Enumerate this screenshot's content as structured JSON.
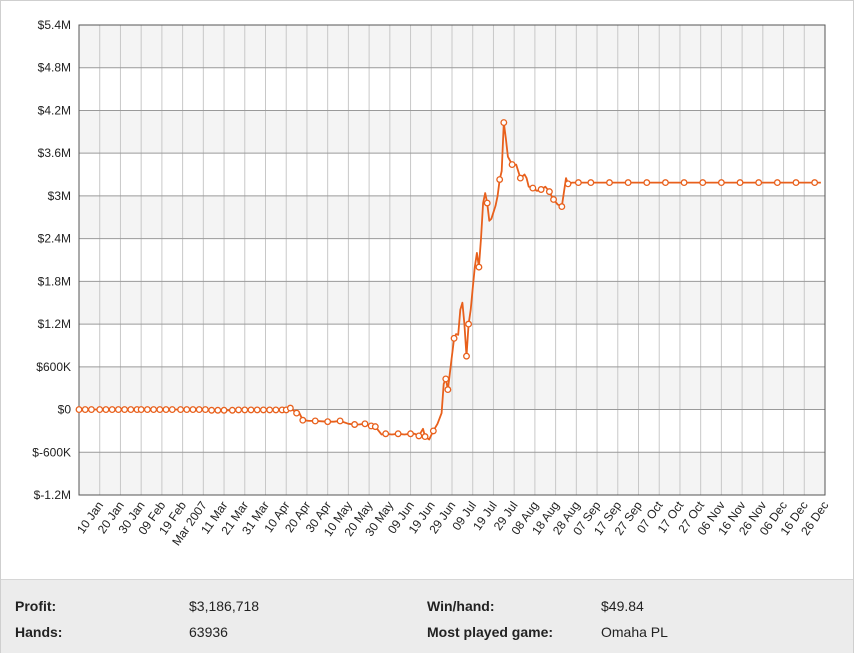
{
  "chart_data": {
    "type": "line",
    "title": "",
    "xlabel": "",
    "ylabel": "",
    "ylim": [
      -1200000,
      5400000
    ],
    "y_ticks": [
      -1200000,
      -600000,
      0,
      600000,
      1200000,
      1800000,
      2400000,
      3000000,
      3600000,
      4200000,
      4800000,
      5400000
    ],
    "y_tick_labels": [
      "$-1.2M",
      "$-600K",
      "$0",
      "$600K",
      "$1.2M",
      "$1.8M",
      "$2.4M",
      "$3M",
      "$3.6M",
      "$4.2M",
      "$4.8M",
      "$5.4M"
    ],
    "x_tick_labels": [
      "10 Jan",
      "20 Jan",
      "30 Jan",
      "09 Feb",
      "19 Feb",
      "Mar 2007",
      "11 Mar",
      "21 Mar",
      "31 Mar",
      "10 Apr",
      "20 Apr",
      "30 Apr",
      "10 May",
      "20 May",
      "30 May",
      "09 Jun",
      "19 Jun",
      "29 Jun",
      "09 Jul",
      "19 Jul",
      "29 Jul",
      "08 Aug",
      "18 Aug",
      "28 Aug",
      "07 Sep",
      "17 Sep",
      "27 Sep",
      "07 Oct",
      "17 Oct",
      "27 Oct",
      "06 Nov",
      "16 Nov",
      "26 Nov",
      "06 Dec",
      "16 Dec",
      "26 Dec"
    ],
    "grid": true,
    "line_color": "#e8601c",
    "series": [
      {
        "name": "",
        "points": [
          [
            0,
            0
          ],
          [
            3,
            0
          ],
          [
            6,
            0
          ],
          [
            10,
            0
          ],
          [
            13,
            0
          ],
          [
            16,
            0
          ],
          [
            19,
            0
          ],
          [
            22,
            0
          ],
          [
            25,
            0
          ],
          [
            28,
            0
          ],
          [
            30,
            0
          ],
          [
            33,
            0
          ],
          [
            36,
            0
          ],
          [
            39,
            0
          ],
          [
            42,
            0
          ],
          [
            45,
            0
          ],
          [
            49,
            0
          ],
          [
            52,
            0
          ],
          [
            55,
            0
          ],
          [
            58,
            0
          ],
          [
            61,
            0
          ],
          [
            64,
            -10000
          ],
          [
            67,
            -10000
          ],
          [
            70,
            -10000
          ],
          [
            74,
            -10000
          ],
          [
            77,
            -5000
          ],
          [
            80,
            -5000
          ],
          [
            83,
            -5000
          ],
          [
            86,
            -5000
          ],
          [
            89,
            -5000
          ],
          [
            92,
            -5000
          ],
          [
            95,
            -5000
          ],
          [
            98,
            -5000
          ],
          [
            100,
            -5000
          ],
          [
            102,
            20000
          ],
          [
            105,
            -50000
          ],
          [
            106,
            -30000
          ],
          [
            108,
            -150000
          ],
          [
            111,
            -160000
          ],
          [
            114,
            -160000
          ],
          [
            117,
            -165000
          ],
          [
            120,
            -170000
          ],
          [
            123,
            -170000
          ],
          [
            126,
            -160000
          ],
          [
            130,
            -200000
          ],
          [
            133,
            -210000
          ],
          [
            135,
            -210000
          ],
          [
            138,
            -200000
          ],
          [
            141,
            -230000
          ],
          [
            143,
            -240000
          ],
          [
            146,
            -350000
          ],
          [
            148,
            -340000
          ],
          [
            151,
            -350000
          ],
          [
            154,
            -340000
          ],
          [
            157,
            -350000
          ],
          [
            160,
            -340000
          ],
          [
            162,
            -340000
          ],
          [
            164,
            -370000
          ],
          [
            166,
            -270000
          ],
          [
            167,
            -380000
          ],
          [
            169,
            -420000
          ],
          [
            171,
            -300000
          ],
          [
            173,
            -200000
          ],
          [
            175,
            -50000
          ],
          [
            176,
            360000
          ],
          [
            177,
            430000
          ],
          [
            178,
            280000
          ],
          [
            180,
            760000
          ],
          [
            181,
            1000000
          ],
          [
            182,
            1060000
          ],
          [
            183,
            1050000
          ],
          [
            184,
            1400000
          ],
          [
            185,
            1500000
          ],
          [
            186,
            1200000
          ],
          [
            187,
            750000
          ],
          [
            188,
            1200000
          ],
          [
            189,
            1400000
          ],
          [
            190,
            1700000
          ],
          [
            191,
            2000000
          ],
          [
            192,
            2200000
          ],
          [
            193,
            2000000
          ],
          [
            194,
            2400000
          ],
          [
            195,
            2900000
          ],
          [
            196,
            3040000
          ],
          [
            197,
            2900000
          ],
          [
            198,
            2650000
          ],
          [
            199,
            2680000
          ],
          [
            201,
            2860000
          ],
          [
            202,
            3000000
          ],
          [
            203,
            3230000
          ],
          [
            204,
            3350000
          ],
          [
            205,
            4030000
          ],
          [
            206,
            3800000
          ],
          [
            207,
            3550000
          ],
          [
            209,
            3440000
          ],
          [
            211,
            3440000
          ],
          [
            213,
            3250000
          ],
          [
            215,
            3300000
          ],
          [
            216,
            3250000
          ],
          [
            217,
            3130000
          ],
          [
            219,
            3110000
          ],
          [
            221,
            3070000
          ],
          [
            223,
            3090000
          ],
          [
            225,
            3130000
          ],
          [
            227,
            3060000
          ],
          [
            228,
            3000000
          ],
          [
            229,
            2950000
          ],
          [
            231,
            2880000
          ],
          [
            233,
            2850000
          ],
          [
            235,
            3250000
          ],
          [
            236,
            3170000
          ],
          [
            238,
            3187000
          ],
          [
            241,
            3187000
          ],
          [
            244,
            3187000
          ],
          [
            247,
            3187000
          ],
          [
            250,
            3187000
          ],
          [
            253,
            3187000
          ],
          [
            256,
            3187000
          ],
          [
            259,
            3187000
          ],
          [
            262,
            3187000
          ],
          [
            265,
            3187000
          ],
          [
            268,
            3187000
          ],
          [
            271,
            3187000
          ],
          [
            274,
            3187000
          ],
          [
            277,
            3187000
          ],
          [
            280,
            3187000
          ],
          [
            283,
            3187000
          ],
          [
            286,
            3187000
          ],
          [
            289,
            3187000
          ],
          [
            292,
            3187000
          ],
          [
            295,
            3187000
          ],
          [
            298,
            3187000
          ],
          [
            301,
            3187000
          ],
          [
            304,
            3187000
          ],
          [
            307,
            3187000
          ],
          [
            310,
            3187000
          ],
          [
            313,
            3187000
          ],
          [
            316,
            3187000
          ],
          [
            319,
            3187000
          ],
          [
            322,
            3187000
          ],
          [
            325,
            3187000
          ],
          [
            328,
            3187000
          ],
          [
            331,
            3187000
          ],
          [
            334,
            3187000
          ],
          [
            337,
            3187000
          ],
          [
            340,
            3187000
          ],
          [
            343,
            3187000
          ],
          [
            346,
            3187000
          ],
          [
            349,
            3187000
          ],
          [
            352,
            3187000
          ],
          [
            355,
            3187000
          ],
          [
            358,
            3187000
          ]
        ],
        "marker_indices": [
          0,
          1,
          2,
          3,
          4,
          5,
          6,
          7,
          8,
          9,
          10,
          11,
          12,
          13,
          14,
          15,
          16,
          17,
          18,
          19,
          20,
          21,
          22,
          23,
          24,
          25,
          26,
          27,
          28,
          29,
          30,
          31,
          32,
          33,
          34,
          35,
          37,
          39,
          41,
          43,
          45,
          47,
          48,
          49,
          51,
          53,
          55,
          57,
          59,
          61,
          65,
          66,
          68,
          74,
          75,
          80,
          84,
          89,
          91,
          94,
          96,
          100,
          102,
          104,
          106,
          108,
          110,
          112,
          114,
          117,
          120,
          123,
          126,
          129,
          132,
          135,
          138,
          141,
          144,
          147,
          150,
          153,
          156,
          159,
          162,
          165
        ]
      }
    ]
  },
  "stats": {
    "profit_label": "Profit:",
    "profit_value": "$3,186,718",
    "hands_label": "Hands:",
    "hands_value": "63936",
    "winhand_label": "Win/hand:",
    "winhand_value": "$49.84",
    "game_label": "Most played game:",
    "game_value": "Omaha PL"
  }
}
